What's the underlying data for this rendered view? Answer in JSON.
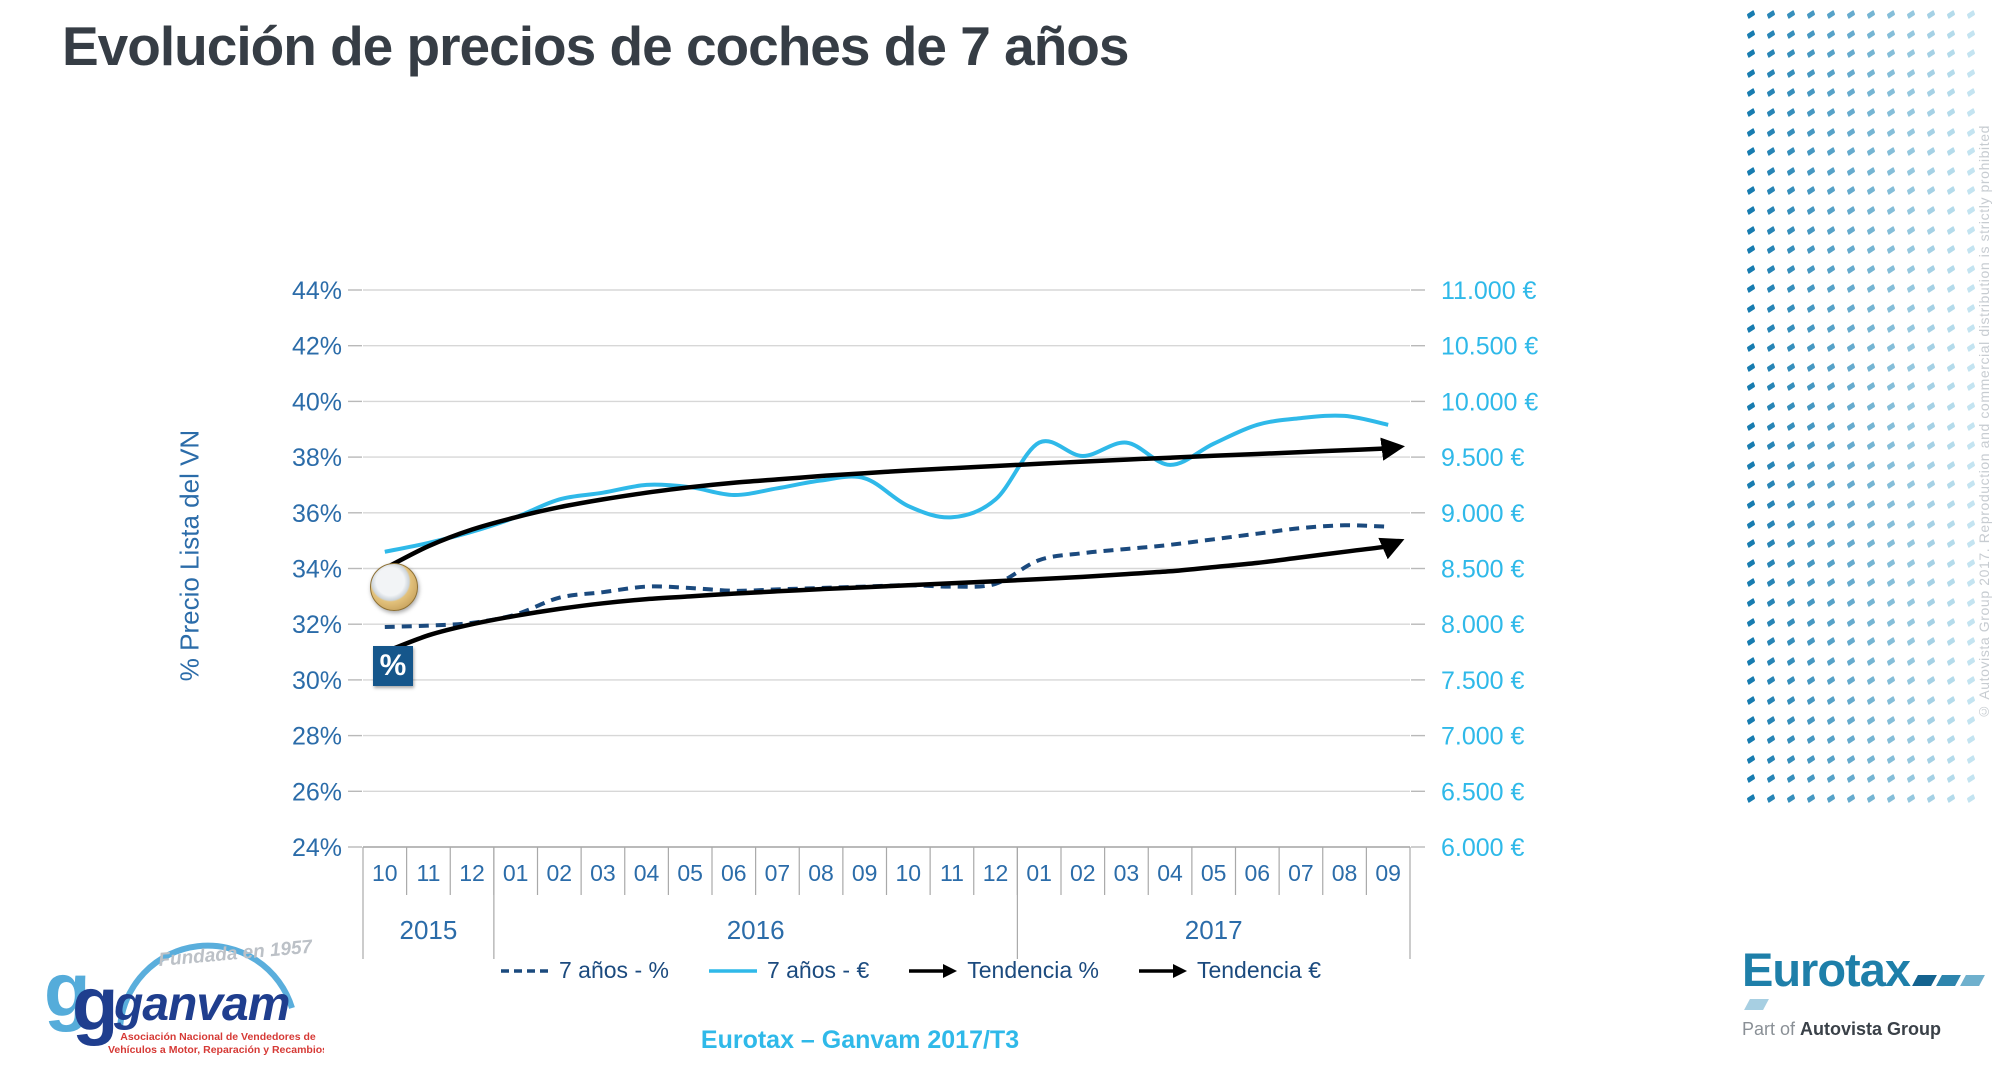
{
  "title": "Evolución de precios de coches de 7 años",
  "y_left_title": "% Precio Lista del VN",
  "source_caption": "Eurotax – Ganvam 2017/T3",
  "copyright_vertical": "© Autovista Group 2017. Reproduction and commercial distribution is strictly prohibited",
  "icons": {
    "percent_badge": "%",
    "euro_coin": "1 euro coin"
  },
  "colors": {
    "title": "#363d45",
    "axis_blue": "#2b6ca9",
    "cyan": "#2fb9e9",
    "navy": "#1b4a7e",
    "black": "#000000",
    "gridline": "#d7d7d7",
    "table_line": "#a9a9a9",
    "dots_from": "#177cb0",
    "dots_to": "#c4e4f1"
  },
  "legend": [
    {
      "label": "7 años - %",
      "style": "dashed",
      "color": "#1b4a7e"
    },
    {
      "label": "7 años - €",
      "style": "solid",
      "color": "#2fb9e9"
    },
    {
      "label": "Tendencia %",
      "style": "arrow",
      "color": "#000000"
    },
    {
      "label": "Tendencia €",
      "style": "arrow",
      "color": "#000000"
    }
  ],
  "logos": {
    "ganvam": {
      "founded": "Fundada en 1957",
      "name": "ganvam",
      "monogram": "g",
      "tagline1": "Asociación Nacional de Vendedores de",
      "tagline2": "Vehículos a Motor, Reparación y Recambios"
    },
    "eurotax": {
      "name": "Eurotax",
      "sub_prefix": "Part of ",
      "sub_bold": "Autovista Group"
    }
  },
  "chart_data": {
    "type": "line",
    "title": "Evolución de precios de coches de 7 años",
    "x_groups": [
      {
        "year": "2015",
        "months": [
          "10",
          "11",
          "12"
        ]
      },
      {
        "year": "2016",
        "months": [
          "01",
          "02",
          "03",
          "04",
          "05",
          "06",
          "07",
          "08",
          "09",
          "10",
          "11",
          "12"
        ]
      },
      {
        "year": "2017",
        "months": [
          "01",
          "02",
          "03",
          "04",
          "05",
          "06",
          "07",
          "08",
          "09"
        ]
      }
    ],
    "y_left": {
      "min": 24,
      "max": 44,
      "step": 2,
      "unit": "%",
      "labels": [
        "44%",
        "42%",
        "40%",
        "38%",
        "36%",
        "34%",
        "32%",
        "30%",
        "28%",
        "26%",
        "24%"
      ]
    },
    "y_right": {
      "min": 6000,
      "max": 11000,
      "step": 500,
      "unit": "€",
      "labels": [
        "11.000 €",
        "10.500 €",
        "10.000 €",
        "9.500 €",
        "9.000 €",
        "8.500 €",
        "8.000 €",
        "7.500 €",
        "7.000 €",
        "6.500 €",
        "6.000 €"
      ]
    },
    "grid": true,
    "legend_position": "bottom",
    "series": [
      {
        "name": "7 años - %",
        "axis": "left",
        "style": "dashed",
        "color": "#1b4a7e",
        "values": [
          31.9,
          31.95,
          32.05,
          32.35,
          32.95,
          33.15,
          33.35,
          33.3,
          33.2,
          33.25,
          33.3,
          33.35,
          33.4,
          33.35,
          33.45,
          34.3,
          34.55,
          34.7,
          34.85,
          35.05,
          35.25,
          35.45,
          35.55,
          35.5
        ]
      },
      {
        "name": "7 años - €",
        "axis": "right",
        "style": "solid",
        "color": "#2fb9e9",
        "values": [
          8650,
          8730,
          8830,
          8960,
          9120,
          9180,
          9250,
          9230,
          9160,
          9220,
          9290,
          9310,
          9060,
          8960,
          9120,
          9630,
          9510,
          9630,
          9430,
          9620,
          9790,
          9850,
          9870,
          9790
        ]
      },
      {
        "name": "Tendencia %",
        "axis": "left",
        "style": "trend-arrow",
        "color": "#000000",
        "values": [
          31.0,
          31.6,
          32.0,
          32.3,
          32.55,
          32.75,
          32.9,
          33.0,
          33.1,
          33.18,
          33.26,
          33.33,
          33.4,
          33.47,
          33.54,
          33.62,
          33.7,
          33.8,
          33.9,
          34.05,
          34.2,
          34.4,
          34.6,
          34.8
        ],
        "arrow_end_value": 34.95
      },
      {
        "name": "Tendencia €",
        "axis": "right",
        "style": "trend-arrow",
        "color": "#000000",
        "values": [
          8500,
          8700,
          8850,
          8960,
          9050,
          9120,
          9180,
          9230,
          9270,
          9300,
          9330,
          9355,
          9380,
          9400,
          9420,
          9440,
          9460,
          9478,
          9495,
          9512,
          9528,
          9545,
          9562,
          9578
        ],
        "arrow_end_value": 9590
      }
    ]
  }
}
